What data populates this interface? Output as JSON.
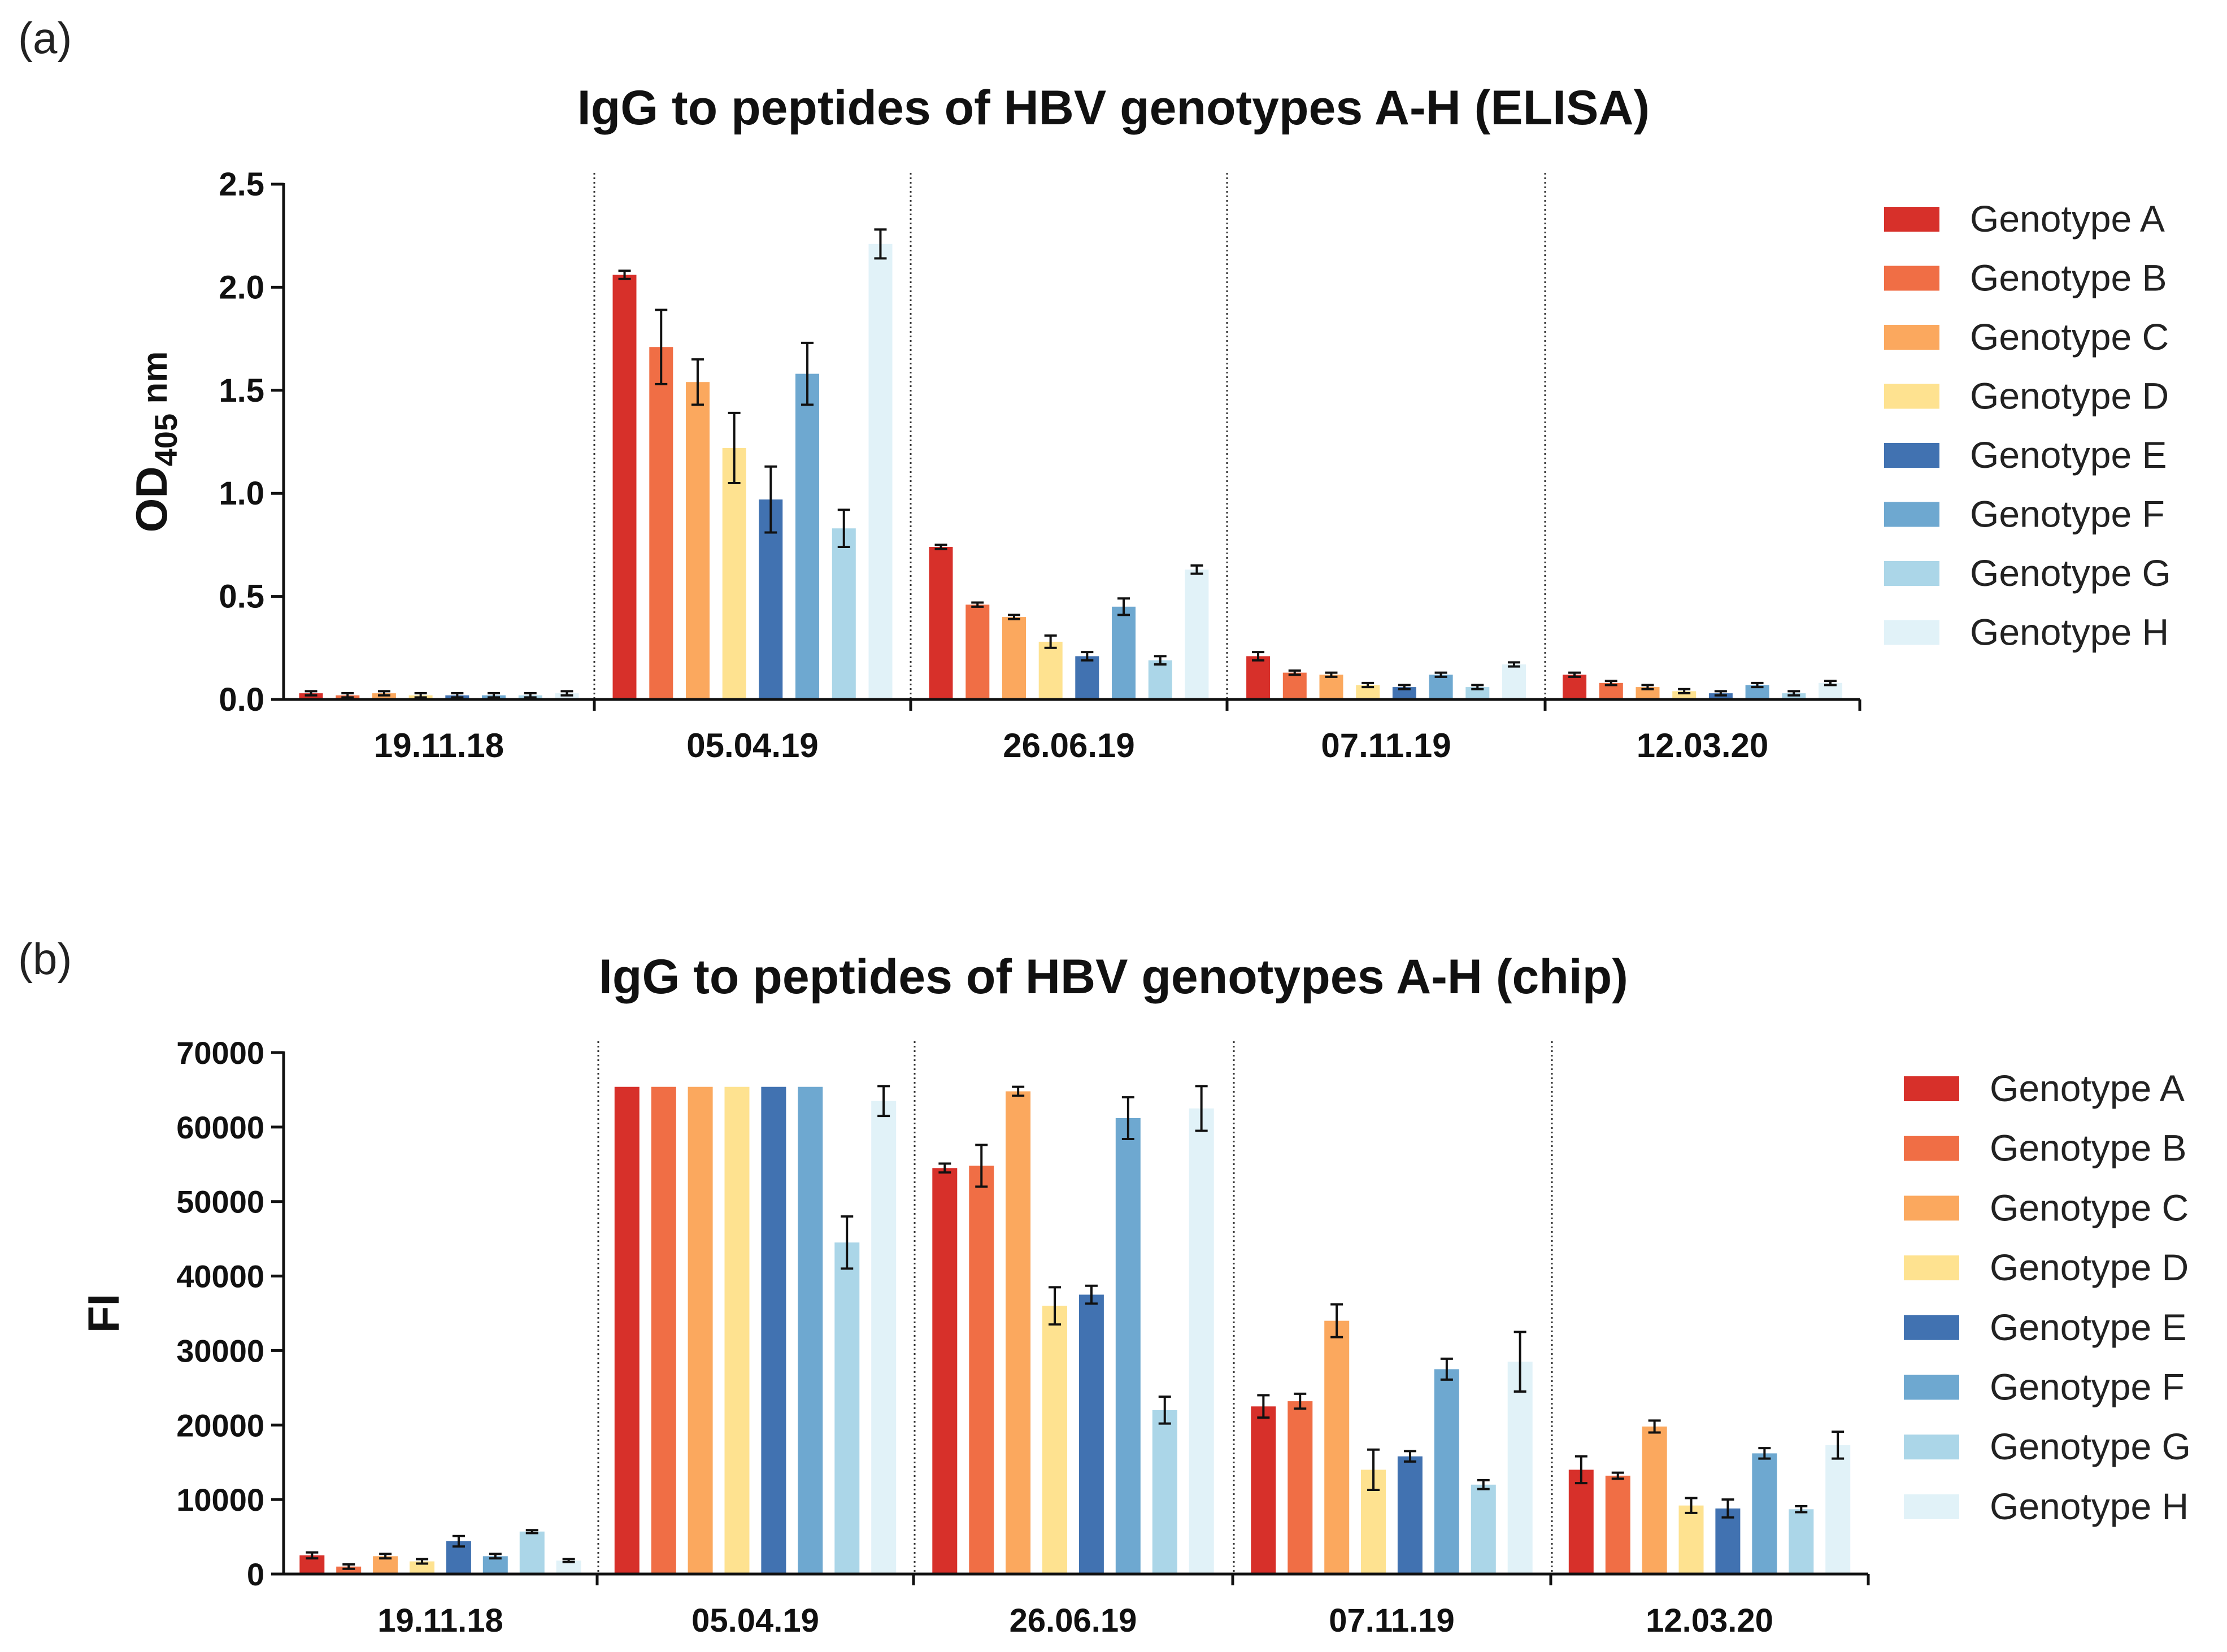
{
  "colors": {
    "Genotype A": "#d7302a",
    "Genotype B": "#f06e45",
    "Genotype C": "#fba85e",
    "Genotype D": "#fee290",
    "Genotype E": "#4172b1",
    "Genotype F": "#6ea8d0",
    "Genotype G": "#abd6e8",
    "Genotype H": "#e1f2f8"
  },
  "chart_data": [
    {
      "panel_label": "(a)",
      "type": "bar",
      "title": "IgG to peptides of HBV genotypes A-H (ELISA)",
      "xlabel": "",
      "ylabel_main": "OD",
      "ylabel_sub": "405",
      "ylabel_unit": " nm",
      "ylim": [
        0,
        2.5
      ],
      "yticks": [
        "0.0",
        "0.5",
        "1.0",
        "1.5",
        "2.0",
        "2.5"
      ],
      "ytick_values": [
        0,
        0.5,
        1.0,
        1.5,
        2.0,
        2.5
      ],
      "categories": [
        "19.11.18",
        "05.04.19",
        "26.06.19",
        "07.11.19",
        "12.03.20"
      ],
      "legend": "right",
      "series": [
        {
          "name": "Genotype A",
          "values": [
            0.03,
            2.06,
            0.74,
            0.21,
            0.12
          ],
          "errors": [
            0.01,
            0.02,
            0.01,
            0.02,
            0.01
          ]
        },
        {
          "name": "Genotype B",
          "values": [
            0.02,
            1.71,
            0.46,
            0.13,
            0.08
          ],
          "errors": [
            0.01,
            0.18,
            0.01,
            0.01,
            0.01
          ]
        },
        {
          "name": "Genotype C",
          "values": [
            0.03,
            1.54,
            0.4,
            0.12,
            0.06
          ],
          "errors": [
            0.01,
            0.11,
            0.01,
            0.01,
            0.01
          ]
        },
        {
          "name": "Genotype D",
          "values": [
            0.02,
            1.22,
            0.28,
            0.07,
            0.04
          ],
          "errors": [
            0.01,
            0.17,
            0.03,
            0.01,
            0.01
          ]
        },
        {
          "name": "Genotype E",
          "values": [
            0.02,
            0.97,
            0.21,
            0.06,
            0.03
          ],
          "errors": [
            0.01,
            0.16,
            0.02,
            0.01,
            0.01
          ]
        },
        {
          "name": "Genotype F",
          "values": [
            0.02,
            1.58,
            0.45,
            0.12,
            0.07
          ],
          "errors": [
            0.01,
            0.15,
            0.04,
            0.01,
            0.01
          ]
        },
        {
          "name": "Genotype G",
          "values": [
            0.02,
            0.83,
            0.19,
            0.06,
            0.03
          ],
          "errors": [
            0.01,
            0.09,
            0.02,
            0.01,
            0.01
          ]
        },
        {
          "name": "Genotype H",
          "values": [
            0.03,
            2.21,
            0.63,
            0.17,
            0.08
          ],
          "errors": [
            0.01,
            0.07,
            0.02,
            0.01,
            0.01
          ]
        }
      ]
    },
    {
      "panel_label": "(b)",
      "type": "bar",
      "title": "IgG to peptides of HBV genotypes A-H (chip)",
      "xlabel": "",
      "ylabel_main": "FI",
      "ylabel_sub": "",
      "ylabel_unit": "",
      "ylim": [
        0,
        70000
      ],
      "yticks": [
        "0",
        "10000",
        "20000",
        "30000",
        "40000",
        "50000",
        "60000",
        "70000"
      ],
      "ytick_values": [
        0,
        10000,
        20000,
        30000,
        40000,
        50000,
        60000,
        70000
      ],
      "categories": [
        "19.11.18",
        "05.04.19",
        "26.06.19",
        "07.11.19",
        "12.03.20"
      ],
      "legend": "right",
      "series": [
        {
          "name": "Genotype A",
          "values": [
            2500,
            65400,
            54500,
            22500,
            14000
          ],
          "errors": [
            400,
            0,
            600,
            1500,
            1800
          ]
        },
        {
          "name": "Genotype B",
          "values": [
            1000,
            65400,
            54800,
            23200,
            13200
          ],
          "errors": [
            300,
            0,
            2800,
            1000,
            400
          ]
        },
        {
          "name": "Genotype C",
          "values": [
            2400,
            65400,
            64800,
            34000,
            19800
          ],
          "errors": [
            300,
            0,
            600,
            2200,
            800
          ]
        },
        {
          "name": "Genotype D",
          "values": [
            1700,
            65400,
            36000,
            14000,
            9200
          ],
          "errors": [
            300,
            0,
            2500,
            2700,
            1000
          ]
        },
        {
          "name": "Genotype E",
          "values": [
            4400,
            65400,
            37500,
            15800,
            8800
          ],
          "errors": [
            700,
            0,
            1200,
            700,
            1200
          ]
        },
        {
          "name": "Genotype F",
          "values": [
            2400,
            65400,
            61200,
            27500,
            16200
          ],
          "errors": [
            300,
            0,
            2800,
            1400,
            700
          ]
        },
        {
          "name": "Genotype G",
          "values": [
            5700,
            44500,
            22000,
            12000,
            8700
          ],
          "errors": [
            200,
            3500,
            1800,
            600,
            400
          ]
        },
        {
          "name": "Genotype H",
          "values": [
            1800,
            63500,
            62500,
            28500,
            17300
          ],
          "errors": [
            200,
            2000,
            3000,
            4000,
            1800
          ]
        }
      ]
    }
  ]
}
